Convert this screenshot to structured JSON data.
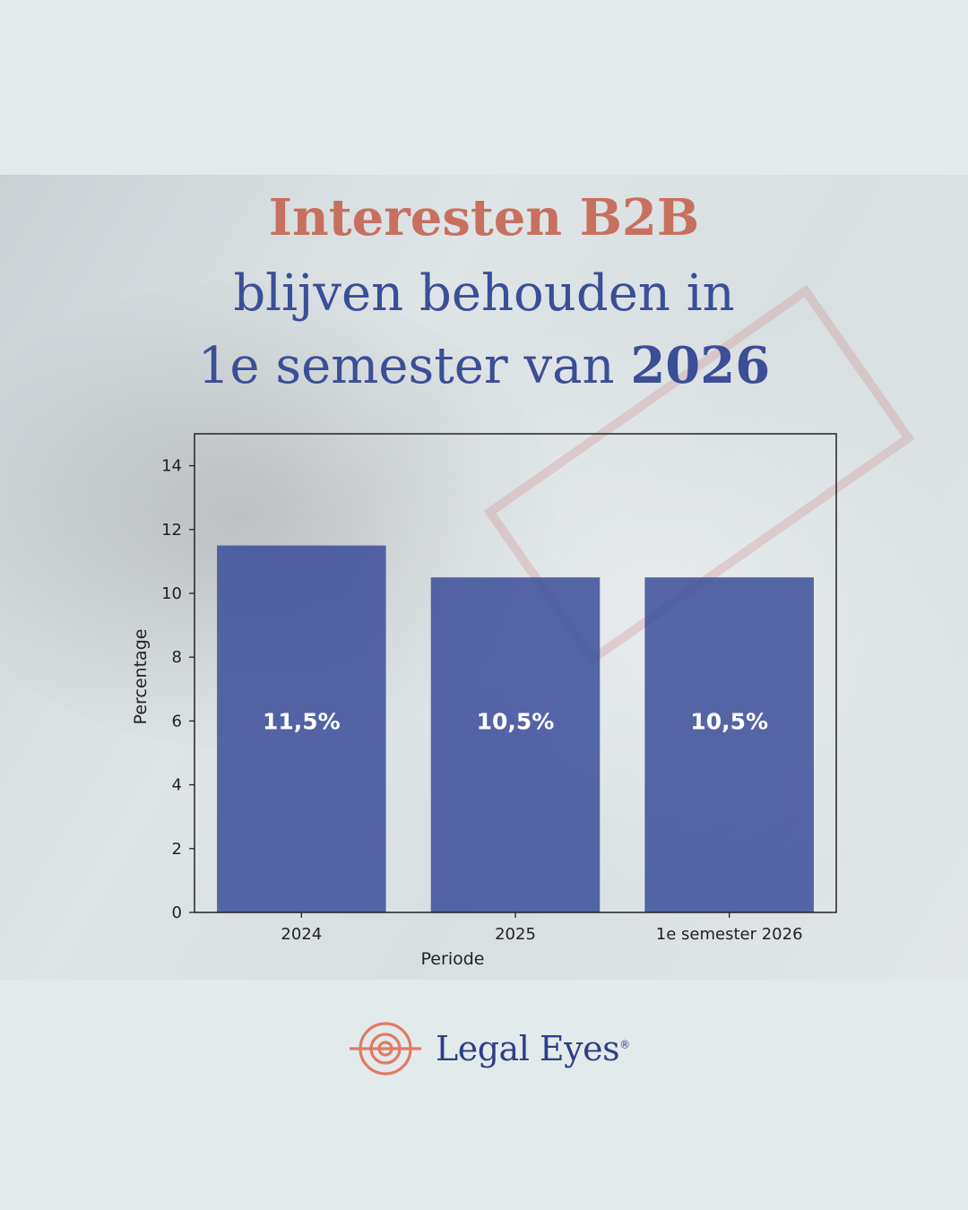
{
  "heading": {
    "line1": "Interesten B2B",
    "line2": "blijven behouden in",
    "line3_prefix": "1e semester van ",
    "line3_bold": "2026"
  },
  "chart_data": {
    "type": "bar",
    "categories": [
      "2024",
      "2025",
      "1e semester 2026"
    ],
    "values": [
      11.5,
      10.5,
      10.5
    ],
    "data_labels": [
      "11,5%",
      "10,5%",
      "10,5%"
    ],
    "xlabel": "Periode",
    "ylabel": "Percentage",
    "ylim": [
      0,
      15
    ],
    "yticks": [
      0,
      2,
      4,
      6,
      8,
      10,
      12,
      14
    ],
    "grid": false,
    "bar_color": "#3b4e9a"
  },
  "brand": {
    "name": "Legal Eyes",
    "registered": "®",
    "logo_icon": "target-eye-icon",
    "accent_color": "#e07b62"
  }
}
